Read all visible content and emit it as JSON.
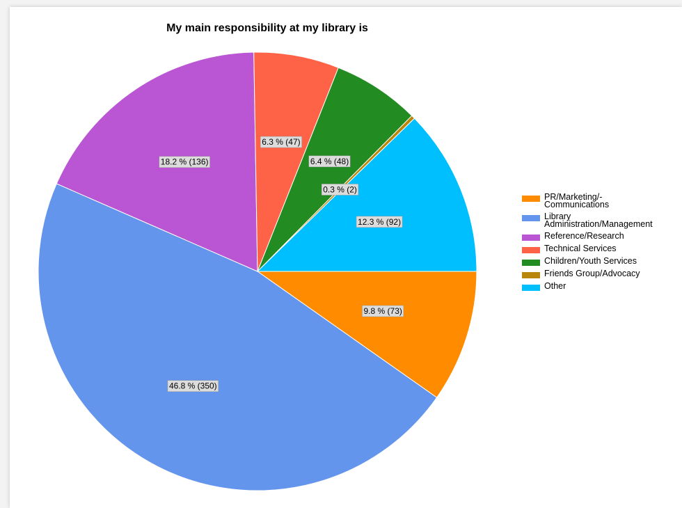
{
  "chart_data": {
    "type": "pie",
    "title": "My main responsibility at my library is",
    "legend_position": "right",
    "slices": [
      {
        "name": "PR/Marketing/-\nCommunications",
        "value": 73,
        "percent": 9.8,
        "label": "9.8 % (73)",
        "color": "#ff8c00"
      },
      {
        "name": "Library\nAdministration/Management",
        "value": 350,
        "percent": 46.8,
        "label": "46.8 % (350)",
        "color": "#6495ed"
      },
      {
        "name": "Reference/Research",
        "value": 136,
        "percent": 18.2,
        "label": "18.2 % (136)",
        "color": "#ba55d3"
      },
      {
        "name": "Technical Services",
        "value": 47,
        "percent": 6.3,
        "label": "6.3 % (47)",
        "color": "#ff6347"
      },
      {
        "name": "Children/Youth Services",
        "value": 48,
        "percent": 6.4,
        "label": "6.4 % (48)",
        "color": "#228b22"
      },
      {
        "name": "Friends Group/Advocacy",
        "value": 2,
        "percent": 0.3,
        "label": "0.3 % (2)",
        "color": "#b8860b"
      },
      {
        "name": "Other",
        "value": 92,
        "percent": 12.3,
        "label": "12.3 % (92)",
        "color": "#00bfff"
      }
    ]
  }
}
